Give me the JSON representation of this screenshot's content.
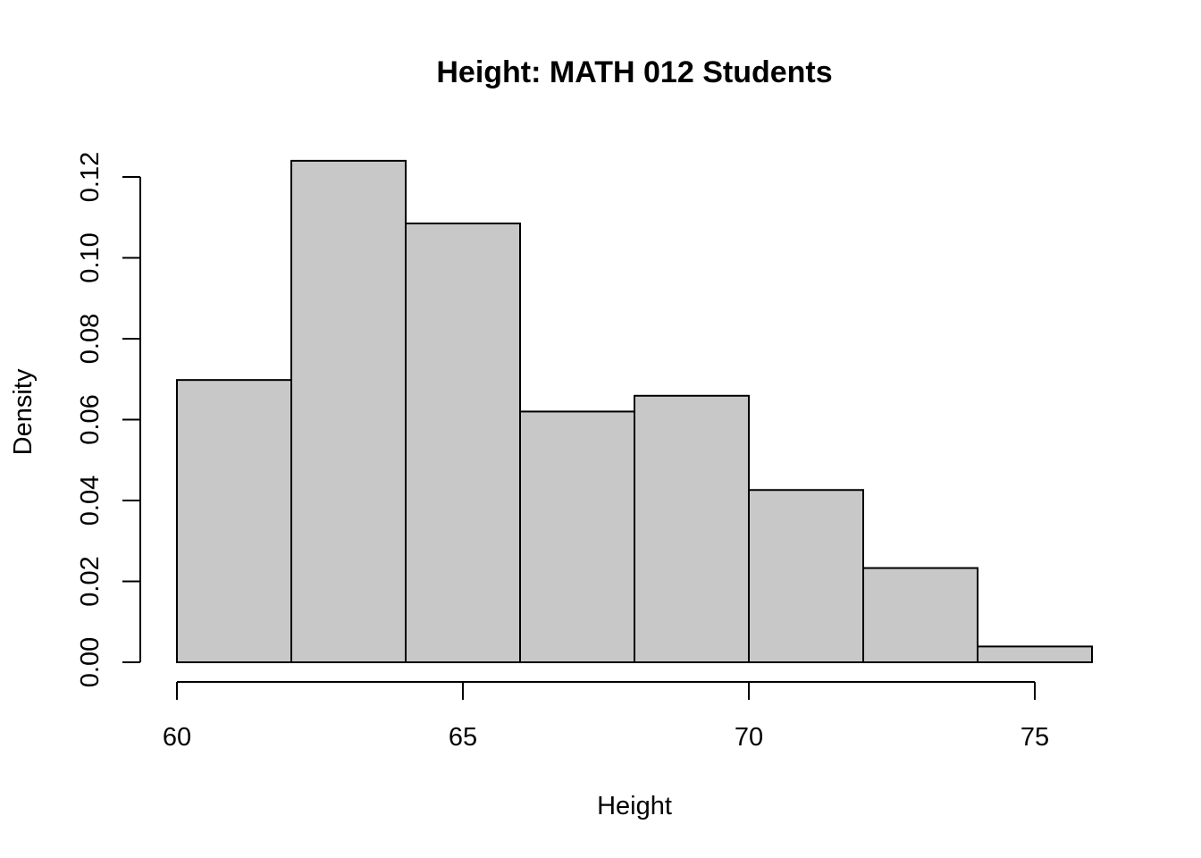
{
  "chart_data": {
    "type": "bar",
    "title": "Height: MATH 012 Students",
    "xlabel": "Height",
    "ylabel": "Density",
    "bins": [
      {
        "x0": 60,
        "x1": 62,
        "density": 0.0698
      },
      {
        "x0": 62,
        "x1": 64,
        "density": 0.124
      },
      {
        "x0": 64,
        "x1": 66,
        "density": 0.1085
      },
      {
        "x0": 66,
        "x1": 68,
        "density": 0.062
      },
      {
        "x0": 68,
        "x1": 70,
        "density": 0.0659
      },
      {
        "x0": 70,
        "x1": 72,
        "density": 0.0426
      },
      {
        "x0": 72,
        "x1": 74,
        "density": 0.0233
      },
      {
        "x0": 74,
        "x1": 76,
        "density": 0.0039
      }
    ],
    "xticks": [
      {
        "value": 60,
        "label": "60"
      },
      {
        "value": 65,
        "label": "65"
      },
      {
        "value": 70,
        "label": "70"
      },
      {
        "value": 75,
        "label": "75"
      }
    ],
    "yticks": [
      {
        "value": 0.0,
        "label": "0.00"
      },
      {
        "value": 0.02,
        "label": "0.02"
      },
      {
        "value": 0.04,
        "label": "0.04"
      },
      {
        "value": 0.06,
        "label": "0.06"
      },
      {
        "value": 0.08,
        "label": "0.08"
      },
      {
        "value": 0.1,
        "label": "0.10"
      },
      {
        "value": 0.12,
        "label": "0.12"
      }
    ],
    "fill_color": "#c8c8c8",
    "grid": false
  }
}
